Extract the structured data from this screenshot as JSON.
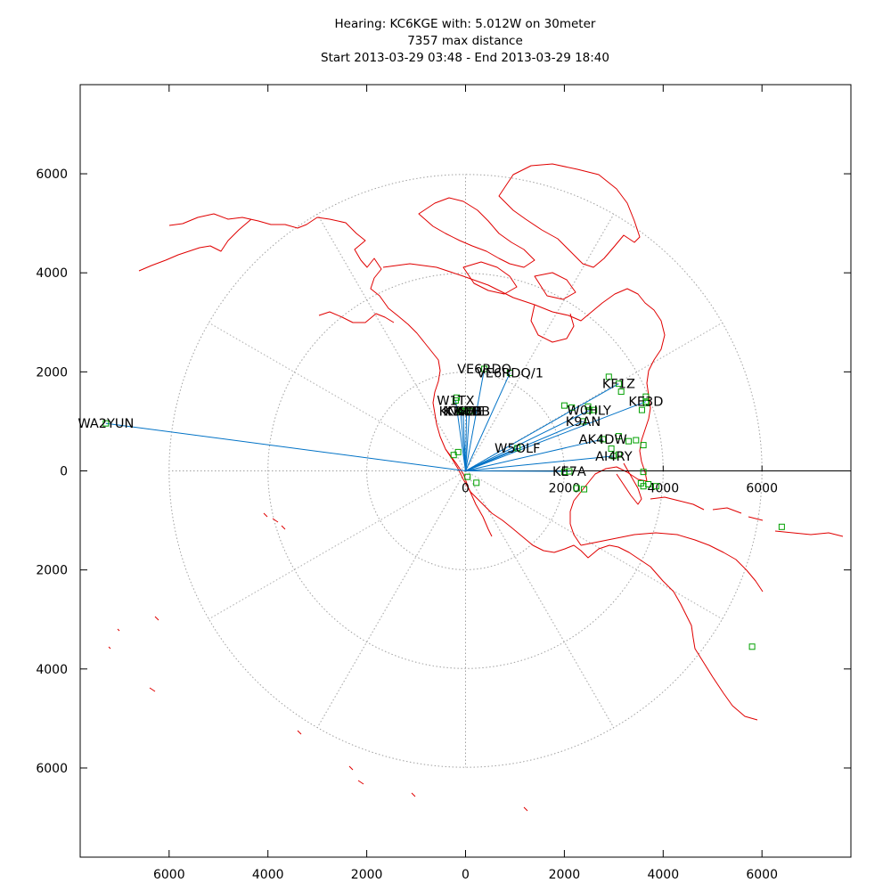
{
  "chart_data": {
    "type": "scatter",
    "title_lines": [
      "Hearing: KC6KGE with: 5.012W on 30meter",
      "7357 max distance",
      "Start 2013-03-29 03:48 - End 2013-03-29 18:40"
    ],
    "xlim": [
      -7800,
      7800
    ],
    "ylim": [
      -7800,
      7800
    ],
    "x_ticks": [
      0,
      2000,
      4000,
      6000
    ],
    "x_tick_labels": [
      "6000",
      "4000",
      "2000",
      "0",
      "2000",
      "4000",
      "6000"
    ],
    "x_tick_values": [
      -6000,
      -4000,
      -2000,
      0,
      2000,
      4000,
      6000
    ],
    "y_tick_labels": [
      "6000",
      "4000",
      "2000",
      "0",
      "2000",
      "4000",
      "6000"
    ],
    "y_tick_values": [
      6000,
      4000,
      2000,
      0,
      -2000,
      -4000,
      -6000
    ],
    "inline_tick_labels": [
      "0",
      "2000",
      "4000",
      "6000"
    ],
    "inline_tick_values": [
      0,
      2000,
      4000,
      6000
    ],
    "range_rings": [
      2000,
      4000,
      6000
    ],
    "spoke_angles_deg": [
      0,
      30,
      60,
      90,
      120,
      150,
      180,
      210,
      240,
      270,
      300,
      330
    ],
    "colors": {
      "coast": "#e00000",
      "path": "#0072c6",
      "station": "#00a000",
      "grid": "#a0a0a0",
      "axis": "#000000"
    },
    "stations": [
      {
        "call": "WA2YUN",
        "x": -7280,
        "y": 960
      },
      {
        "call": "VE6RDQ",
        "x": 380,
        "y": 2060
      },
      {
        "call": "VE6RDQ/1",
        "x": 900,
        "y": 1980
      },
      {
        "call": "W1TX",
        "x": -200,
        "y": 1420
      },
      {
        "call": "KI7E",
        "x": 80,
        "y": 1210
      },
      {
        "call": "KD7D",
        "x": -50,
        "y": 1210
      },
      {
        "call": "K7WBB",
        "x": 20,
        "y": 1210
      },
      {
        "call": "KN6EB",
        "x": -100,
        "y": 1210
      },
      {
        "call": "W5OLF",
        "x": 1050,
        "y": 460
      },
      {
        "call": "KE7A",
        "x": 2100,
        "y": -10
      },
      {
        "call": "KF1Z",
        "x": 3100,
        "y": 1760
      },
      {
        "call": "KE3D",
        "x": 3650,
        "y": 1400
      },
      {
        "call": "W0HLY",
        "x": 2500,
        "y": 1220
      },
      {
        "call": "K9AN",
        "x": 2380,
        "y": 1000
      },
      {
        "call": "AK4DW",
        "x": 2780,
        "y": 640
      },
      {
        "call": "AI4RY",
        "x": 3000,
        "y": 300
      }
    ],
    "extra_points": [
      {
        "x": -240,
        "y": 320
      },
      {
        "x": -150,
        "y": 380
      },
      {
        "x": 40,
        "y": -120
      },
      {
        "x": 220,
        "y": -240
      },
      {
        "x": 2400,
        "y": -370
      },
      {
        "x": 2900,
        "y": 1900
      },
      {
        "x": 3150,
        "y": 1600
      },
      {
        "x": 3650,
        "y": 1500
      },
      {
        "x": 3570,
        "y": 1230
      },
      {
        "x": 3660,
        "y": 1370
      },
      {
        "x": 2000,
        "y": 1320
      },
      {
        "x": 2150,
        "y": 1280
      },
      {
        "x": 2480,
        "y": 1300
      },
      {
        "x": 3100,
        "y": 700
      },
      {
        "x": 3300,
        "y": 600
      },
      {
        "x": 3600,
        "y": 520
      },
      {
        "x": 3450,
        "y": 620
      },
      {
        "x": 2950,
        "y": 450
      },
      {
        "x": 3100,
        "y": 330
      },
      {
        "x": 3600,
        "y": -20
      },
      {
        "x": 3550,
        "y": -250
      },
      {
        "x": 3700,
        "y": -270
      },
      {
        "x": 3600,
        "y": -310
      },
      {
        "x": 3860,
        "y": -310
      },
      {
        "x": 2000,
        "y": -20
      },
      {
        "x": 6400,
        "y": -1130
      },
      {
        "x": 5800,
        "y": -3550
      },
      {
        "x": 2250,
        "y": -350
      },
      {
        "x": -180,
        "y": 1480
      },
      {
        "x": 2600,
        "y": 1230
      }
    ]
  }
}
